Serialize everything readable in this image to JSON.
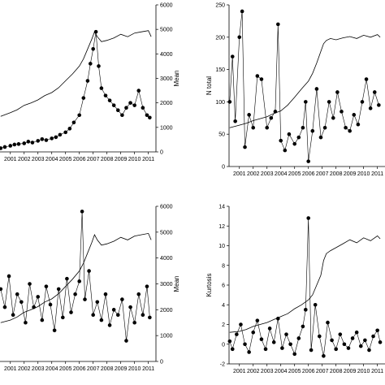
{
  "chart_data": [
    {
      "type": "line",
      "x_ticks": [
        "2001",
        "2002",
        "2003",
        "2004",
        "2005",
        "2006",
        "2007",
        "2008",
        "2009",
        "2010",
        "2011"
      ],
      "yright_label": "Mean",
      "yright_ticks": [
        0,
        1000,
        2000,
        3000,
        4000,
        5000,
        6000
      ],
      "ylim": [
        0,
        6000
      ],
      "grid": false,
      "series": [
        {
          "style": "line",
          "x": [
            2000.3,
            2001.0,
            2001.5,
            2002.0,
            2002.5,
            2003.0,
            2003.5,
            2004.0,
            2004.5,
            2005.0,
            2005.5,
            2006.0,
            2006.3,
            2006.6,
            2006.9,
            2007.1,
            2007.3,
            2007.6,
            2008.0,
            2008.5,
            2009.0,
            2009.5,
            2010.0,
            2010.5,
            2011.0,
            2011.2
          ],
          "y": [
            1450,
            1600,
            1720,
            1900,
            2000,
            2120,
            2300,
            2420,
            2620,
            2900,
            3180,
            3500,
            3800,
            4200,
            4600,
            4900,
            4700,
            4500,
            4550,
            4650,
            4800,
            4700,
            4850,
            4900,
            4950,
            4700
          ]
        },
        {
          "style": "markers+line",
          "x": [
            2000.3,
            2000.6,
            2001.0,
            2001.3,
            2001.6,
            2002.0,
            2002.3,
            2002.6,
            2003.0,
            2003.3,
            2003.6,
            2004.0,
            2004.3,
            2004.6,
            2005.0,
            2005.3,
            2005.6,
            2006.0,
            2006.3,
            2006.6,
            2006.8,
            2007.0,
            2007.2,
            2007.4,
            2007.6,
            2007.9,
            2008.2,
            2008.5,
            2008.8,
            2009.1,
            2009.4,
            2009.7,
            2010.0,
            2010.3,
            2010.6,
            2010.9,
            2011.1
          ],
          "y": [
            150,
            200,
            250,
            300,
            320,
            350,
            420,
            380,
            450,
            520,
            480,
            550,
            600,
            700,
            800,
            950,
            1200,
            1500,
            2200,
            2900,
            3600,
            4200,
            4900,
            3500,
            2600,
            2300,
            2100,
            1900,
            1700,
            1500,
            1800,
            2000,
            1900,
            2500,
            1800,
            1500,
            1400
          ]
        }
      ]
    },
    {
      "type": "line",
      "x_ticks": [
        "2001",
        "2002",
        "2003",
        "2004",
        "2005",
        "2006",
        "2007",
        "2008",
        "2009",
        "2010",
        "2011"
      ],
      "ylabel": "N total",
      "y_ticks": [
        0,
        50,
        100,
        150,
        200,
        250
      ],
      "ylim": [
        0,
        250
      ],
      "grid": false,
      "series": [
        {
          "style": "line",
          "x": [
            2000.3,
            2001.0,
            2001.5,
            2002.0,
            2002.5,
            2003.0,
            2003.5,
            2004.0,
            2004.5,
            2005.0,
            2005.5,
            2006.0,
            2006.3,
            2006.6,
            2006.9,
            2007.1,
            2007.3,
            2007.6,
            2008.0,
            2008.5,
            2009.0,
            2009.5,
            2010.0,
            2010.5,
            2011.0,
            2011.2
          ],
          "y": [
            60,
            64,
            67,
            71,
            74,
            77,
            82,
            86,
            95,
            107,
            120,
            132,
            144,
            160,
            178,
            190,
            195,
            198,
            196,
            199,
            201,
            198,
            203,
            200,
            204,
            200
          ]
        },
        {
          "style": "markers+line",
          "x": [
            2000.3,
            2000.5,
            2000.7,
            2001.0,
            2001.2,
            2001.4,
            2001.7,
            2002.0,
            2002.3,
            2002.6,
            2003.0,
            2003.3,
            2003.6,
            2003.8,
            2004.0,
            2004.3,
            2004.6,
            2005.0,
            2005.3,
            2005.6,
            2005.8,
            2006.0,
            2006.3,
            2006.6,
            2006.9,
            2007.2,
            2007.5,
            2007.8,
            2008.1,
            2008.4,
            2008.7,
            2009.0,
            2009.3,
            2009.6,
            2009.9,
            2010.2,
            2010.5,
            2010.8,
            2011.1
          ],
          "y": [
            100,
            170,
            70,
            200,
            240,
            30,
            80,
            60,
            140,
            135,
            60,
            75,
            85,
            220,
            40,
            25,
            50,
            35,
            45,
            60,
            100,
            8,
            55,
            120,
            45,
            60,
            100,
            75,
            115,
            85,
            60,
            55,
            80,
            65,
            100,
            135,
            90,
            115,
            95
          ]
        }
      ]
    },
    {
      "type": "line",
      "x_ticks": [
        "2001",
        "2002",
        "2003",
        "2004",
        "2005",
        "2006",
        "2007",
        "2008",
        "2009",
        "2010",
        "2011"
      ],
      "yright_label": "Mean",
      "yright_ticks": [
        0,
        1000,
        2000,
        3000,
        4000,
        5000,
        6000
      ],
      "ylim": [
        0,
        6000
      ],
      "grid": false,
      "series": [
        {
          "style": "line",
          "x": [
            2000.3,
            2001.0,
            2001.5,
            2002.0,
            2002.5,
            2003.0,
            2003.5,
            2004.0,
            2004.5,
            2005.0,
            2005.5,
            2006.0,
            2006.3,
            2006.6,
            2006.9,
            2007.1,
            2007.3,
            2007.6,
            2008.0,
            2008.5,
            2009.0,
            2009.5,
            2010.0,
            2010.5,
            2011.0,
            2011.2
          ],
          "y": [
            1500,
            1600,
            1720,
            1900,
            2000,
            2120,
            2300,
            2420,
            2620,
            2900,
            3180,
            3500,
            3800,
            4200,
            4600,
            4900,
            4700,
            4500,
            4550,
            4650,
            4800,
            4700,
            4850,
            4900,
            4950,
            4700
          ]
        },
        {
          "style": "markers+line",
          "x": [
            2000.3,
            2000.6,
            2000.9,
            2001.2,
            2001.5,
            2001.8,
            2002.1,
            2002.4,
            2002.7,
            2003.0,
            2003.3,
            2003.6,
            2003.9,
            2004.2,
            2004.5,
            2004.8,
            2005.1,
            2005.4,
            2005.7,
            2006.0,
            2006.2,
            2006.4,
            2006.7,
            2007.0,
            2007.3,
            2007.6,
            2007.9,
            2008.2,
            2008.5,
            2008.8,
            2009.1,
            2009.4,
            2009.7,
            2010.0,
            2010.3,
            2010.6,
            2010.9,
            2011.1
          ],
          "y": [
            2800,
            2100,
            3300,
            1800,
            2600,
            2300,
            1500,
            3000,
            2100,
            2500,
            1600,
            2900,
            2200,
            1200,
            2800,
            1700,
            3200,
            1900,
            2600,
            3100,
            5800,
            2400,
            3500,
            1800,
            2300,
            1600,
            2600,
            1400,
            2000,
            1800,
            2400,
            800,
            2100,
            1500,
            2600,
            1800,
            2900,
            1700
          ]
        }
      ]
    },
    {
      "type": "line",
      "x_ticks": [
        "2001",
        "2002",
        "2003",
        "2004",
        "2005",
        "2006",
        "2007",
        "2008",
        "2009",
        "2010",
        "2011"
      ],
      "ylabel": "Kurtosis",
      "y_ticks": [
        -2,
        0,
        2,
        4,
        6,
        8,
        10,
        12,
        14
      ],
      "ylim": [
        -2,
        14
      ],
      "grid": false,
      "series": [
        {
          "style": "line",
          "x": [
            2000.3,
            2001.0,
            2001.5,
            2002.0,
            2002.5,
            2003.0,
            2003.5,
            2004.0,
            2004.5,
            2005.0,
            2005.5,
            2006.0,
            2006.3,
            2006.6,
            2006.9,
            2007.1,
            2007.3,
            2007.6,
            2008.0,
            2008.5,
            2009.0,
            2009.5,
            2010.0,
            2010.5,
            2011.0,
            2011.2
          ],
          "y": [
            1.2,
            1.3,
            1.5,
            1.8,
            2.0,
            2.2,
            2.5,
            2.8,
            3.1,
            3.6,
            4.0,
            4.5,
            5.0,
            6.0,
            7.0,
            8.5,
            9.2,
            9.5,
            9.8,
            10.2,
            10.6,
            10.3,
            10.8,
            10.5,
            11.0,
            10.7
          ]
        },
        {
          "style": "markers+line",
          "x": [
            2000.3,
            2000.5,
            2000.8,
            2001.1,
            2001.4,
            2001.7,
            2002.0,
            2002.3,
            2002.6,
            2002.9,
            2003.2,
            2003.5,
            2003.8,
            2004.1,
            2004.4,
            2004.7,
            2005.0,
            2005.3,
            2005.6,
            2005.8,
            2006.0,
            2006.2,
            2006.5,
            2006.8,
            2007.1,
            2007.4,
            2007.7,
            2008.0,
            2008.3,
            2008.6,
            2008.9,
            2009.2,
            2009.5,
            2009.8,
            2010.1,
            2010.4,
            2010.7,
            2011.0,
            2011.2
          ],
          "y": [
            0.3,
            -0.5,
            1.0,
            2.0,
            0.0,
            -0.8,
            1.2,
            2.4,
            0.5,
            -0.5,
            1.6,
            0.2,
            2.6,
            -0.4,
            1.0,
            0.0,
            -1.0,
            0.6,
            1.8,
            3.5,
            12.8,
            -0.6,
            4.0,
            0.8,
            -1.2,
            2.2,
            0.4,
            -0.5,
            1.0,
            0.0,
            -0.4,
            0.6,
            1.2,
            -0.2,
            0.4,
            -0.6,
            0.8,
            1.4,
            0.2
          ]
        }
      ]
    }
  ]
}
